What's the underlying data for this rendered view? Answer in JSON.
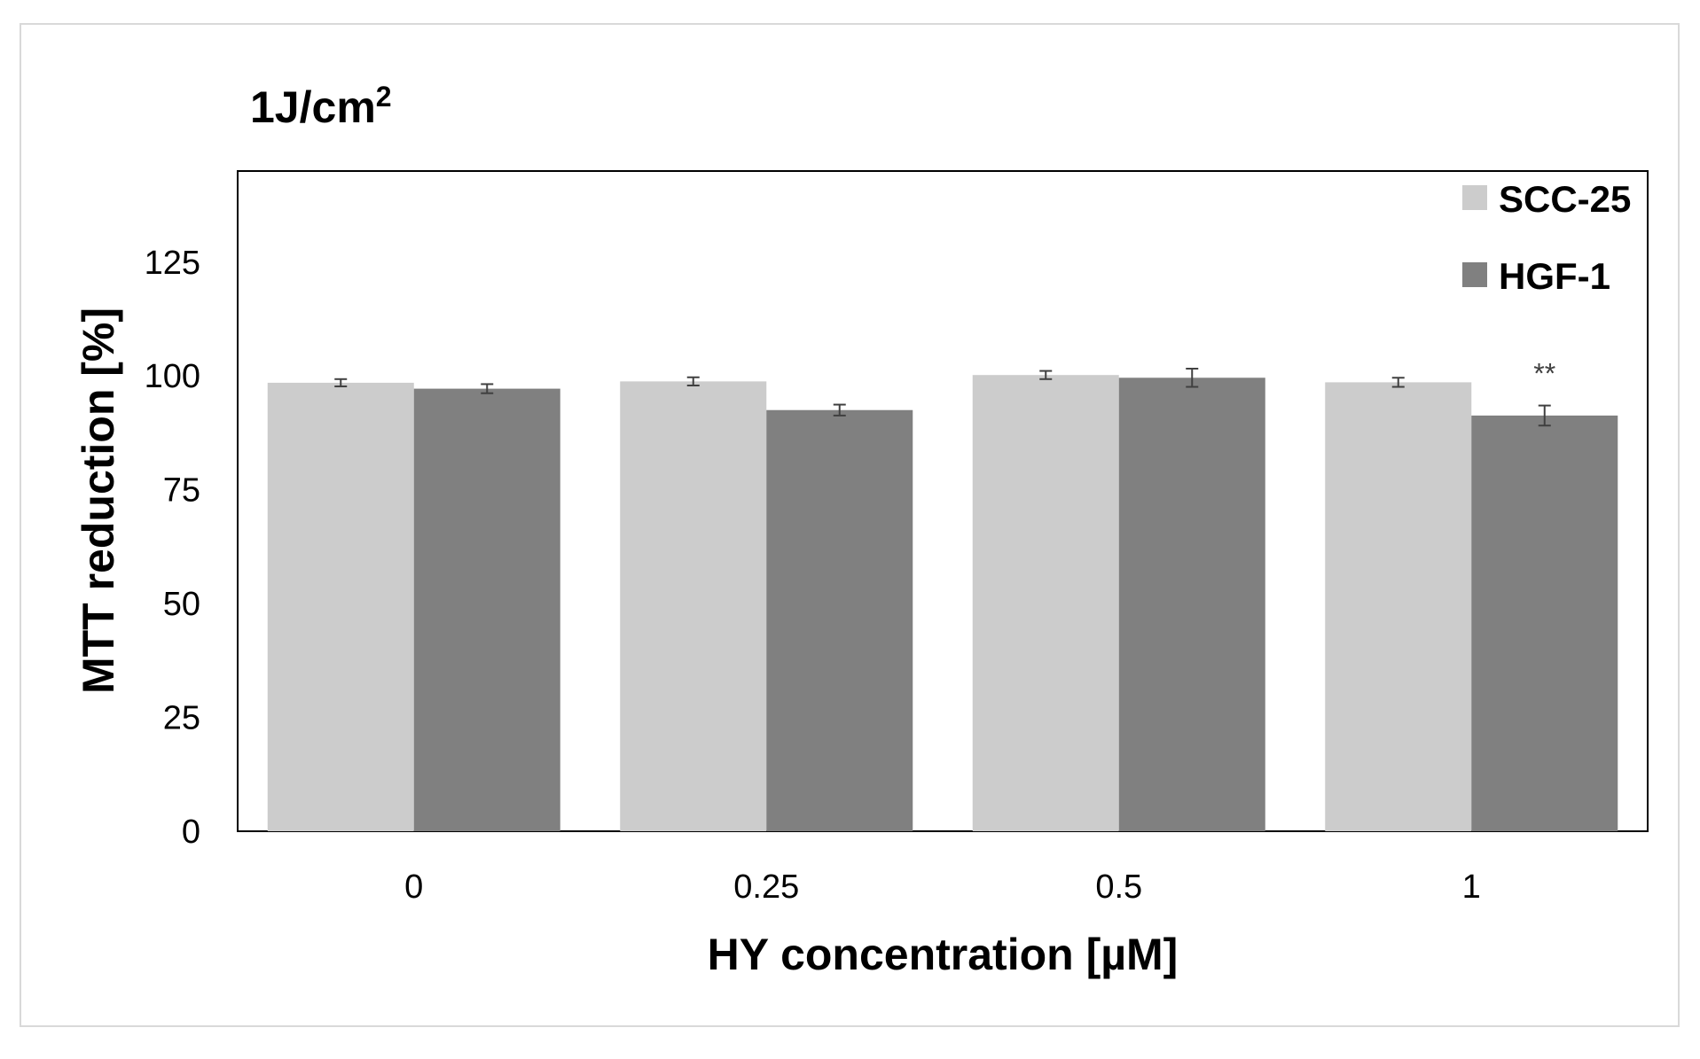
{
  "chart_data": {
    "type": "bar",
    "title": "1J/cm",
    "title_superscript": "2",
    "xlabel": "HY concentration [µM]",
    "ylabel": "MTT reduction [%]",
    "categories": [
      "0",
      "0.25",
      "0.5",
      "1"
    ],
    "series": [
      {
        "name": "SCC-25",
        "color": "#cccccc",
        "values": [
          98.5,
          98.8,
          100.2,
          98.6
        ],
        "errors": [
          0.8,
          0.9,
          0.9,
          1.0
        ]
      },
      {
        "name": "HGF-1",
        "color": "#808080",
        "values": [
          97.2,
          92.5,
          99.6,
          91.3
        ],
        "errors": [
          1.0,
          1.2,
          2.0,
          2.2
        ]
      }
    ],
    "ylim": [
      0,
      145
    ],
    "yticks": [
      "0",
      "25",
      "50",
      "75",
      "100",
      "125"
    ],
    "annotations": [
      {
        "text": "**",
        "category": "1",
        "series": "HGF-1"
      }
    ],
    "legend_position": "top-right",
    "grid": false
  }
}
